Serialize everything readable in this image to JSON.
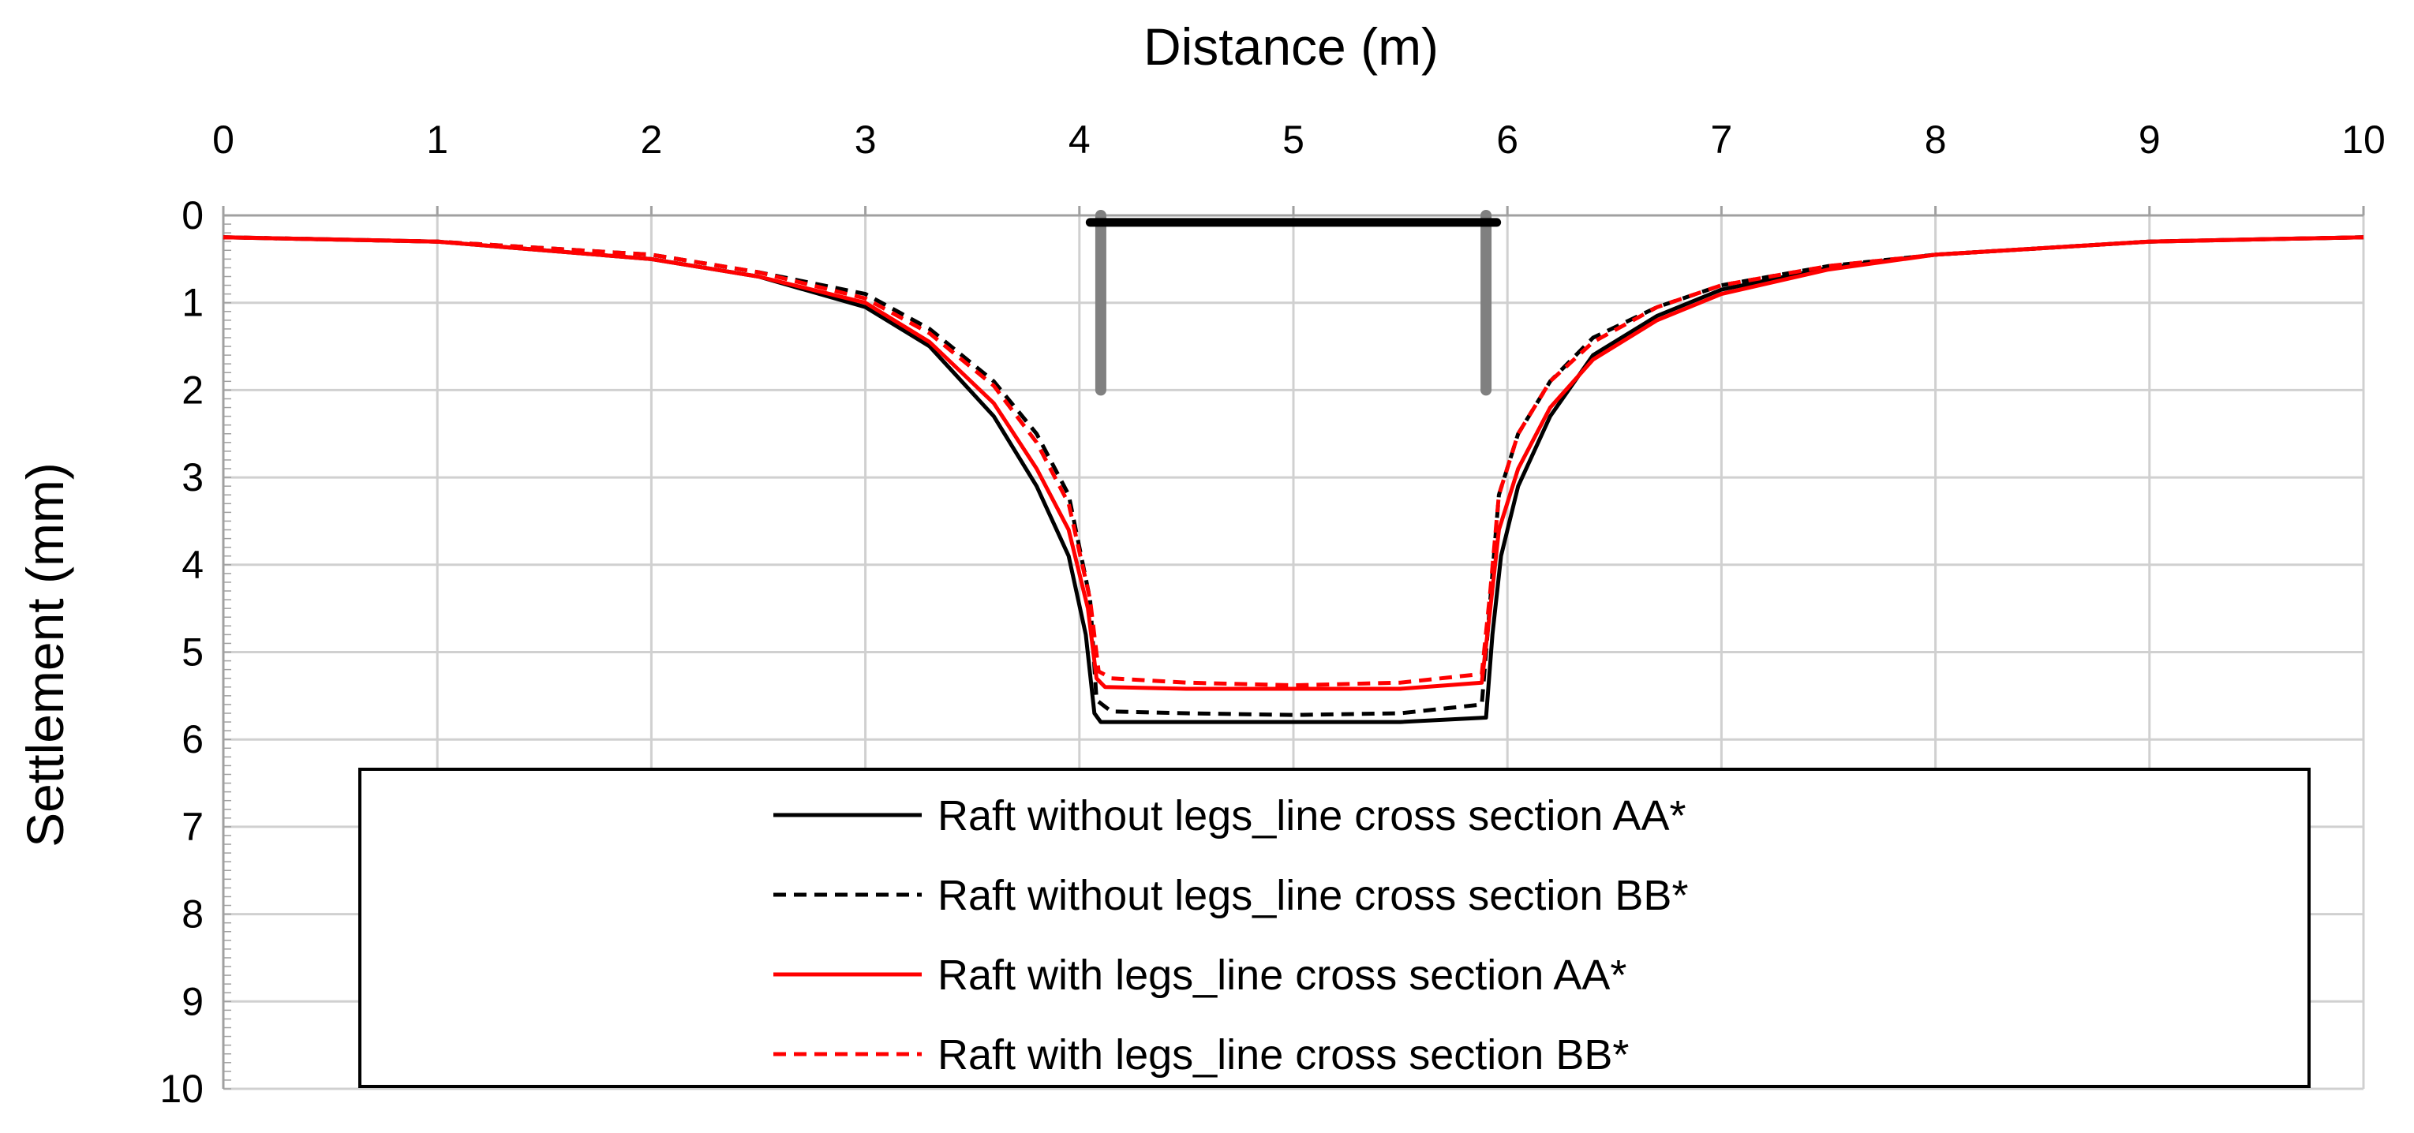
{
  "chart_data": {
    "type": "line",
    "xlabel": "Distance (m)",
    "ylabel": "Settlement (mm)",
    "xlim": [
      0,
      10
    ],
    "ylim": [
      0,
      10
    ],
    "y_inverted": true,
    "x_axis_position": "top",
    "x_ticks": [
      "0",
      "1",
      "2",
      "3",
      "4",
      "5",
      "6",
      "7",
      "8",
      "9",
      "10"
    ],
    "y_ticks": [
      "0",
      "1",
      "2",
      "3",
      "4",
      "5",
      "6",
      "7",
      "8",
      "9",
      "10"
    ],
    "grid": true,
    "legend_position": "bottom-center",
    "raft_schematic": {
      "raft": {
        "x": [
          4.05,
          5.95
        ],
        "y": 0.08,
        "color": "#000000"
      },
      "legs": [
        {
          "x": 4.1,
          "y": [
            0,
            2.0
          ],
          "color": "#808080"
        },
        {
          "x": 5.9,
          "y": [
            0,
            2.0
          ],
          "color": "#808080"
        }
      ]
    },
    "series": [
      {
        "name": "Raft without legs_line cross section AA*",
        "color": "#000000",
        "dash": "solid",
        "x": [
          0,
          1,
          2,
          2.5,
          3,
          3.3,
          3.6,
          3.8,
          3.95,
          4.03,
          4.07,
          4.1,
          4.5,
          5,
          5.5,
          5.9,
          5.93,
          5.97,
          6.05,
          6.2,
          6.4,
          6.7,
          7,
          7.5,
          8,
          9,
          10
        ],
        "y": [
          0.25,
          0.3,
          0.5,
          0.7,
          1.05,
          1.5,
          2.3,
          3.1,
          3.9,
          4.8,
          5.7,
          5.8,
          5.8,
          5.8,
          5.8,
          5.75,
          4.8,
          3.9,
          3.1,
          2.3,
          1.6,
          1.15,
          0.85,
          0.6,
          0.45,
          0.3,
          0.25
        ]
      },
      {
        "name": "Raft without legs_line cross section BB*",
        "color": "#000000",
        "dash": "dashed",
        "x": [
          0,
          1,
          2,
          2.5,
          3,
          3.3,
          3.6,
          3.8,
          3.95,
          4.05,
          4.08,
          4.15,
          4.5,
          5,
          5.5,
          5.88,
          5.92,
          5.96,
          6.05,
          6.2,
          6.4,
          6.7,
          7,
          7.5,
          8,
          9,
          10
        ],
        "y": [
          0.25,
          0.3,
          0.45,
          0.65,
          0.9,
          1.3,
          1.9,
          2.5,
          3.2,
          4.4,
          5.55,
          5.68,
          5.7,
          5.72,
          5.7,
          5.6,
          4.4,
          3.2,
          2.5,
          1.9,
          1.4,
          1.05,
          0.8,
          0.58,
          0.45,
          0.3,
          0.25
        ]
      },
      {
        "name": "Raft with legs_line cross section AA*",
        "color": "#ff0000",
        "dash": "solid",
        "x": [
          0,
          1,
          2,
          2.5,
          3,
          3.3,
          3.6,
          3.8,
          3.95,
          4.04,
          4.08,
          4.12,
          4.5,
          5,
          5.5,
          5.88,
          5.92,
          5.96,
          6.05,
          6.2,
          6.4,
          6.7,
          7,
          7.5,
          8,
          9,
          10
        ],
        "y": [
          0.25,
          0.3,
          0.5,
          0.7,
          1.0,
          1.45,
          2.15,
          2.9,
          3.6,
          4.5,
          5.3,
          5.4,
          5.42,
          5.42,
          5.42,
          5.35,
          4.5,
          3.6,
          2.9,
          2.2,
          1.65,
          1.2,
          0.9,
          0.62,
          0.45,
          0.3,
          0.25
        ]
      },
      {
        "name": "Raft with legs_line cross section BB*",
        "color": "#ff0000",
        "dash": "dashed",
        "x": [
          0,
          1,
          2,
          2.5,
          3,
          3.3,
          3.6,
          3.8,
          3.95,
          4.05,
          4.09,
          4.15,
          4.5,
          5,
          5.5,
          5.88,
          5.92,
          5.96,
          6.05,
          6.2,
          6.4,
          6.7,
          7,
          7.5,
          8,
          9,
          10
        ],
        "y": [
          0.25,
          0.3,
          0.45,
          0.65,
          0.95,
          1.35,
          1.95,
          2.6,
          3.3,
          4.4,
          5.22,
          5.3,
          5.35,
          5.38,
          5.35,
          5.25,
          4.3,
          3.2,
          2.5,
          1.9,
          1.45,
          1.05,
          0.8,
          0.58,
          0.45,
          0.3,
          0.25
        ]
      }
    ]
  }
}
